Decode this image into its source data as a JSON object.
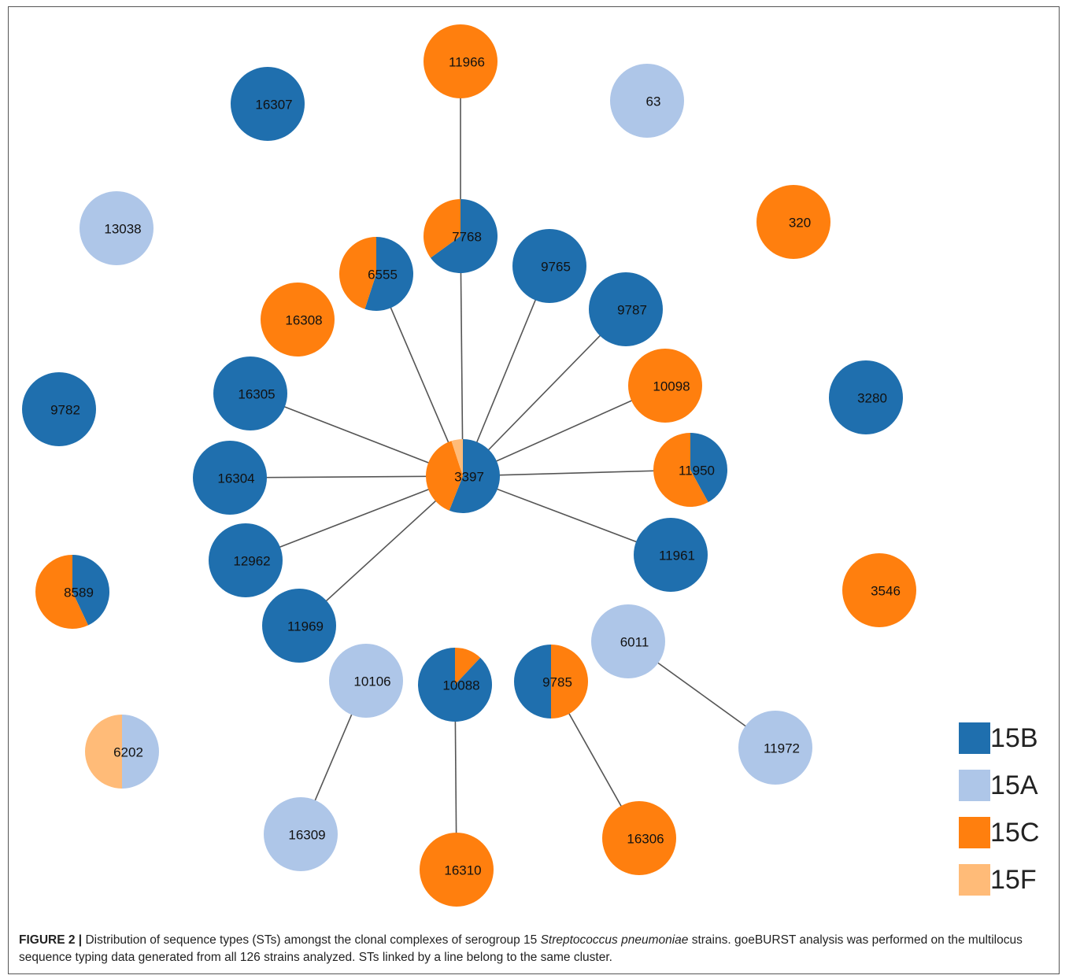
{
  "legend": [
    {
      "label": "15B",
      "color": "#1f6fae"
    },
    {
      "label": "15A",
      "color": "#aec6e8"
    },
    {
      "label": "15C",
      "color": "#ff7f0e"
    },
    {
      "label": "15F",
      "color": "#ffbb78"
    }
  ],
  "nodes": [
    {
      "label": "11966",
      "slices": [
        {
          "serotype": "15C",
          "share": 1
        }
      ]
    },
    {
      "label": "16307",
      "slices": [
        {
          "serotype": "15B",
          "share": 1
        }
      ]
    },
    {
      "label": "63",
      "slices": [
        {
          "serotype": "15A",
          "share": 1
        }
      ]
    },
    {
      "label": "13038",
      "slices": [
        {
          "serotype": "15A",
          "share": 1
        }
      ]
    },
    {
      "label": "320",
      "slices": [
        {
          "serotype": "15C",
          "share": 1
        }
      ]
    },
    {
      "label": "7768",
      "slices": [
        {
          "serotype": "15B",
          "share": 0.65
        },
        {
          "serotype": "15C",
          "share": 0.35
        }
      ]
    },
    {
      "label": "6555",
      "slices": [
        {
          "serotype": "15B",
          "share": 0.55
        },
        {
          "serotype": "15C",
          "share": 0.45
        }
      ]
    },
    {
      "label": "9765",
      "slices": [
        {
          "serotype": "15B",
          "share": 1
        }
      ]
    },
    {
      "label": "9787",
      "slices": [
        {
          "serotype": "15B",
          "share": 1
        }
      ]
    },
    {
      "label": "16308",
      "slices": [
        {
          "serotype": "15C",
          "share": 1
        }
      ]
    },
    {
      "label": "16305",
      "slices": [
        {
          "serotype": "15B",
          "share": 1
        }
      ]
    },
    {
      "label": "10098",
      "slices": [
        {
          "serotype": "15C",
          "share": 1
        }
      ]
    },
    {
      "label": "9782",
      "slices": [
        {
          "serotype": "15B",
          "share": 1
        }
      ]
    },
    {
      "label": "3280",
      "slices": [
        {
          "serotype": "15B",
          "share": 1
        }
      ]
    },
    {
      "label": "3397",
      "slices": [
        {
          "serotype": "15B",
          "share": 0.56
        },
        {
          "serotype": "15C",
          "share": 0.39
        },
        {
          "serotype": "15F",
          "share": 0.05
        }
      ]
    },
    {
      "label": "16304",
      "slices": [
        {
          "serotype": "15B",
          "share": 1
        }
      ]
    },
    {
      "label": "11950",
      "slices": [
        {
          "serotype": "15B",
          "share": 0.42
        },
        {
          "serotype": "15C",
          "share": 0.58
        }
      ]
    },
    {
      "label": "12962",
      "slices": [
        {
          "serotype": "15B",
          "share": 1
        }
      ]
    },
    {
      "label": "11961",
      "slices": [
        {
          "serotype": "15B",
          "share": 1
        }
      ]
    },
    {
      "label": "3546",
      "slices": [
        {
          "serotype": "15C",
          "share": 1
        }
      ]
    },
    {
      "label": "8589",
      "slices": [
        {
          "serotype": "15B",
          "share": 0.43
        },
        {
          "serotype": "15C",
          "share": 0.57
        }
      ]
    },
    {
      "label": "11969",
      "slices": [
        {
          "serotype": "15B",
          "share": 1
        }
      ]
    },
    {
      "label": "6011",
      "slices": [
        {
          "serotype": "15A",
          "share": 1
        }
      ]
    },
    {
      "label": "10106",
      "slices": [
        {
          "serotype": "15A",
          "share": 1
        }
      ]
    },
    {
      "label": "10088",
      "slices": [
        {
          "serotype": "15C",
          "share": 0.12
        },
        {
          "serotype": "15B",
          "share": 0.88
        }
      ]
    },
    {
      "label": "9785",
      "slices": [
        {
          "serotype": "15C",
          "share": 0.5
        },
        {
          "serotype": "15B",
          "share": 0.5
        }
      ]
    },
    {
      "label": "11972",
      "slices": [
        {
          "serotype": "15A",
          "share": 1
        }
      ]
    },
    {
      "label": "6202",
      "slices": [
        {
          "serotype": "15A",
          "share": 0.5
        },
        {
          "serotype": "15F",
          "share": 0.5
        }
      ]
    },
    {
      "label": "16309",
      "slices": [
        {
          "serotype": "15A",
          "share": 1
        }
      ]
    },
    {
      "label": "16310",
      "slices": [
        {
          "serotype": "15C",
          "share": 1
        }
      ]
    },
    {
      "label": "16306",
      "slices": [
        {
          "serotype": "15C",
          "share": 1
        }
      ]
    }
  ],
  "edges": [
    {
      "source": "11966",
      "target": "7768"
    },
    {
      "source": "7768",
      "target": "3397"
    },
    {
      "source": "6555",
      "target": "3397"
    },
    {
      "source": "9765",
      "target": "3397"
    },
    {
      "source": "9787",
      "target": "3397"
    },
    {
      "source": "16305",
      "target": "3397"
    },
    {
      "source": "10098",
      "target": "3397"
    },
    {
      "source": "16304",
      "target": "3397"
    },
    {
      "source": "11950",
      "target": "3397"
    },
    {
      "source": "11961",
      "target": "3397"
    },
    {
      "source": "12962",
      "target": "3397"
    },
    {
      "source": "11969",
      "target": "3397"
    },
    {
      "source": "10088",
      "target": "16310"
    },
    {
      "source": "10106",
      "target": "16309"
    },
    {
      "source": "9785",
      "target": "16306"
    },
    {
      "source": "6011",
      "target": "11972"
    }
  ],
  "caption": {
    "label": "FIGURE 2 |",
    "text_before": " Distribution of sequence types (STs) amongst the clonal complexes of serogroup 15 ",
    "species": "Streptococcus pneumoniae",
    "text_after": " strains. goeBURST analysis was performed on the multilocus sequence typing data generated from all 126 strains analyzed. STs linked by a line belong to the same cluster."
  }
}
